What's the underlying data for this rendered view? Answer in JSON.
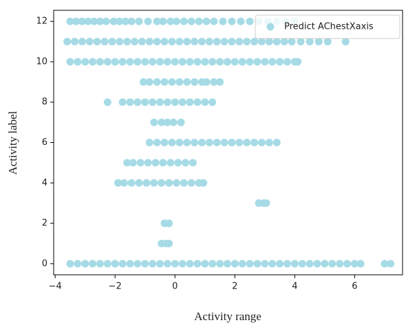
{
  "chart_data": {
    "type": "scatter",
    "xlabel": "Activity range",
    "ylabel": "Activity label",
    "xlim": [
      -4.05,
      7.6
    ],
    "ylim": [
      -0.55,
      12.55
    ],
    "xticks": [
      {
        "value": -4,
        "label": "−4"
      },
      {
        "value": -2,
        "label": "−2"
      },
      0,
      2,
      4,
      6
    ],
    "yticks": [
      0,
      2,
      4,
      6,
      8,
      10,
      12
    ],
    "legend": "upper right",
    "series": [
      {
        "name": "Predict AChestXaxis",
        "color": "#a6dbe6",
        "x": [
          -3.5,
          -3.25,
          -3,
          -2.75,
          -2.5,
          -2.25,
          -2,
          -1.75,
          -1.5,
          -1.25,
          -1,
          -0.75,
          -0.5,
          -0.25,
          0,
          0.25,
          0.5,
          0.75,
          1,
          1.25,
          1.5,
          1.75,
          2,
          2.25,
          2.5,
          2.75,
          3,
          3.25,
          3.5,
          3.75,
          4,
          4.25,
          4.5,
          4.75,
          5,
          5.25,
          5.5,
          5.75,
          6,
          6.2,
          7,
          7.2,
          -0.45,
          -0.3,
          -0.2,
          -0.35,
          -0.2,
          2.8,
          2.95,
          3.05,
          -1.9,
          -1.7,
          -1.45,
          -1.2,
          -0.95,
          -0.7,
          -0.45,
          -0.2,
          0.05,
          0.3,
          0.55,
          0.8,
          0.95,
          -1.6,
          -1.4,
          -1.15,
          -0.9,
          -0.65,
          -0.4,
          -0.15,
          0.1,
          0.35,
          0.6,
          -0.85,
          -0.6,
          -0.35,
          -0.1,
          0.15,
          0.4,
          0.65,
          0.9,
          1.15,
          1.4,
          1.65,
          1.9,
          2.15,
          2.4,
          2.65,
          2.9,
          3.15,
          3.4,
          -0.7,
          -0.45,
          -0.25,
          -0.05,
          0.2,
          -2.25,
          -1.75,
          -1.5,
          -1.25,
          -1,
          -0.75,
          -0.5,
          -0.25,
          0,
          0.25,
          0.5,
          0.75,
          1,
          1.25,
          -1.05,
          -0.85,
          -0.6,
          -0.35,
          -0.1,
          0.15,
          0.4,
          0.65,
          0.9,
          1.05,
          1.3,
          1.5,
          -3.5,
          -3.25,
          -3,
          -2.75,
          -2.5,
          -2.25,
          -2,
          -1.75,
          -1.5,
          -1.25,
          -1,
          -0.75,
          -0.5,
          -0.25,
          0,
          0.25,
          0.5,
          0.75,
          1,
          1.25,
          1.5,
          1.75,
          2,
          2.25,
          2.5,
          2.75,
          3,
          3.25,
          3.5,
          3.75,
          4,
          4.1,
          -3.6,
          -3.35,
          -3.1,
          -2.85,
          -2.6,
          -2.35,
          -2.1,
          -1.85,
          -1.6,
          -1.35,
          -1.1,
          -0.85,
          -0.6,
          -0.35,
          -0.1,
          0.15,
          0.4,
          0.65,
          0.9,
          1.15,
          1.4,
          1.65,
          1.9,
          2.15,
          2.4,
          2.65,
          2.9,
          3.15,
          3.4,
          3.65,
          3.9,
          4.2,
          4.5,
          4.8,
          5.1,
          5.7,
          -3.5,
          -3.3,
          -3.1,
          -2.9,
          -2.7,
          -2.5,
          -2.3,
          -2.05,
          -1.85,
          -1.65,
          -1.45,
          -1.2,
          -0.9,
          -0.6,
          -0.4,
          -0.15,
          0.05,
          0.3,
          0.55,
          0.8,
          1.05,
          1.3,
          1.6,
          1.9,
          2.2,
          2.5,
          2.8,
          3.1,
          3.4,
          3.7,
          4
        ],
        "values": [
          0,
          0,
          0,
          0,
          0,
          0,
          0,
          0,
          0,
          0,
          0,
          0,
          0,
          0,
          0,
          0,
          0,
          0,
          0,
          0,
          0,
          0,
          0,
          0,
          0,
          0,
          0,
          0,
          0,
          0,
          0,
          0,
          0,
          0,
          0,
          0,
          0,
          0,
          0,
          0,
          0,
          0,
          1,
          1,
          1,
          2,
          2,
          3,
          3,
          3,
          4,
          4,
          4,
          4,
          4,
          4,
          4,
          4,
          4,
          4,
          4,
          4,
          4,
          5,
          5,
          5,
          5,
          5,
          5,
          5,
          5,
          5,
          5,
          6,
          6,
          6,
          6,
          6,
          6,
          6,
          6,
          6,
          6,
          6,
          6,
          6,
          6,
          6,
          6,
          6,
          6,
          7,
          7,
          7,
          7,
          7,
          8,
          8,
          8,
          8,
          8,
          8,
          8,
          8,
          8,
          8,
          8,
          8,
          8,
          8,
          9,
          9,
          9,
          9,
          9,
          9,
          9,
          9,
          9,
          9,
          9,
          9,
          10,
          10,
          10,
          10,
          10,
          10,
          10,
          10,
          10,
          10,
          10,
          10,
          10,
          10,
          10,
          10,
          10,
          10,
          10,
          10,
          10,
          10,
          10,
          10,
          10,
          10,
          10,
          10,
          10,
          10,
          10,
          10,
          11,
          11,
          11,
          11,
          11,
          11,
          11,
          11,
          11,
          11,
          11,
          11,
          11,
          11,
          11,
          11,
          11,
          11,
          11,
          11,
          11,
          11,
          11,
          11,
          11,
          11,
          11,
          11,
          11,
          11,
          11,
          11,
          11,
          11,
          11,
          11,
          12,
          12,
          12,
          12,
          12,
          12,
          12,
          12,
          12,
          12,
          12,
          12,
          12,
          12,
          12,
          12,
          12,
          12,
          12,
          12,
          12,
          12,
          12,
          12,
          12,
          12,
          12,
          12,
          12,
          12,
          12
        ]
      }
    ]
  }
}
